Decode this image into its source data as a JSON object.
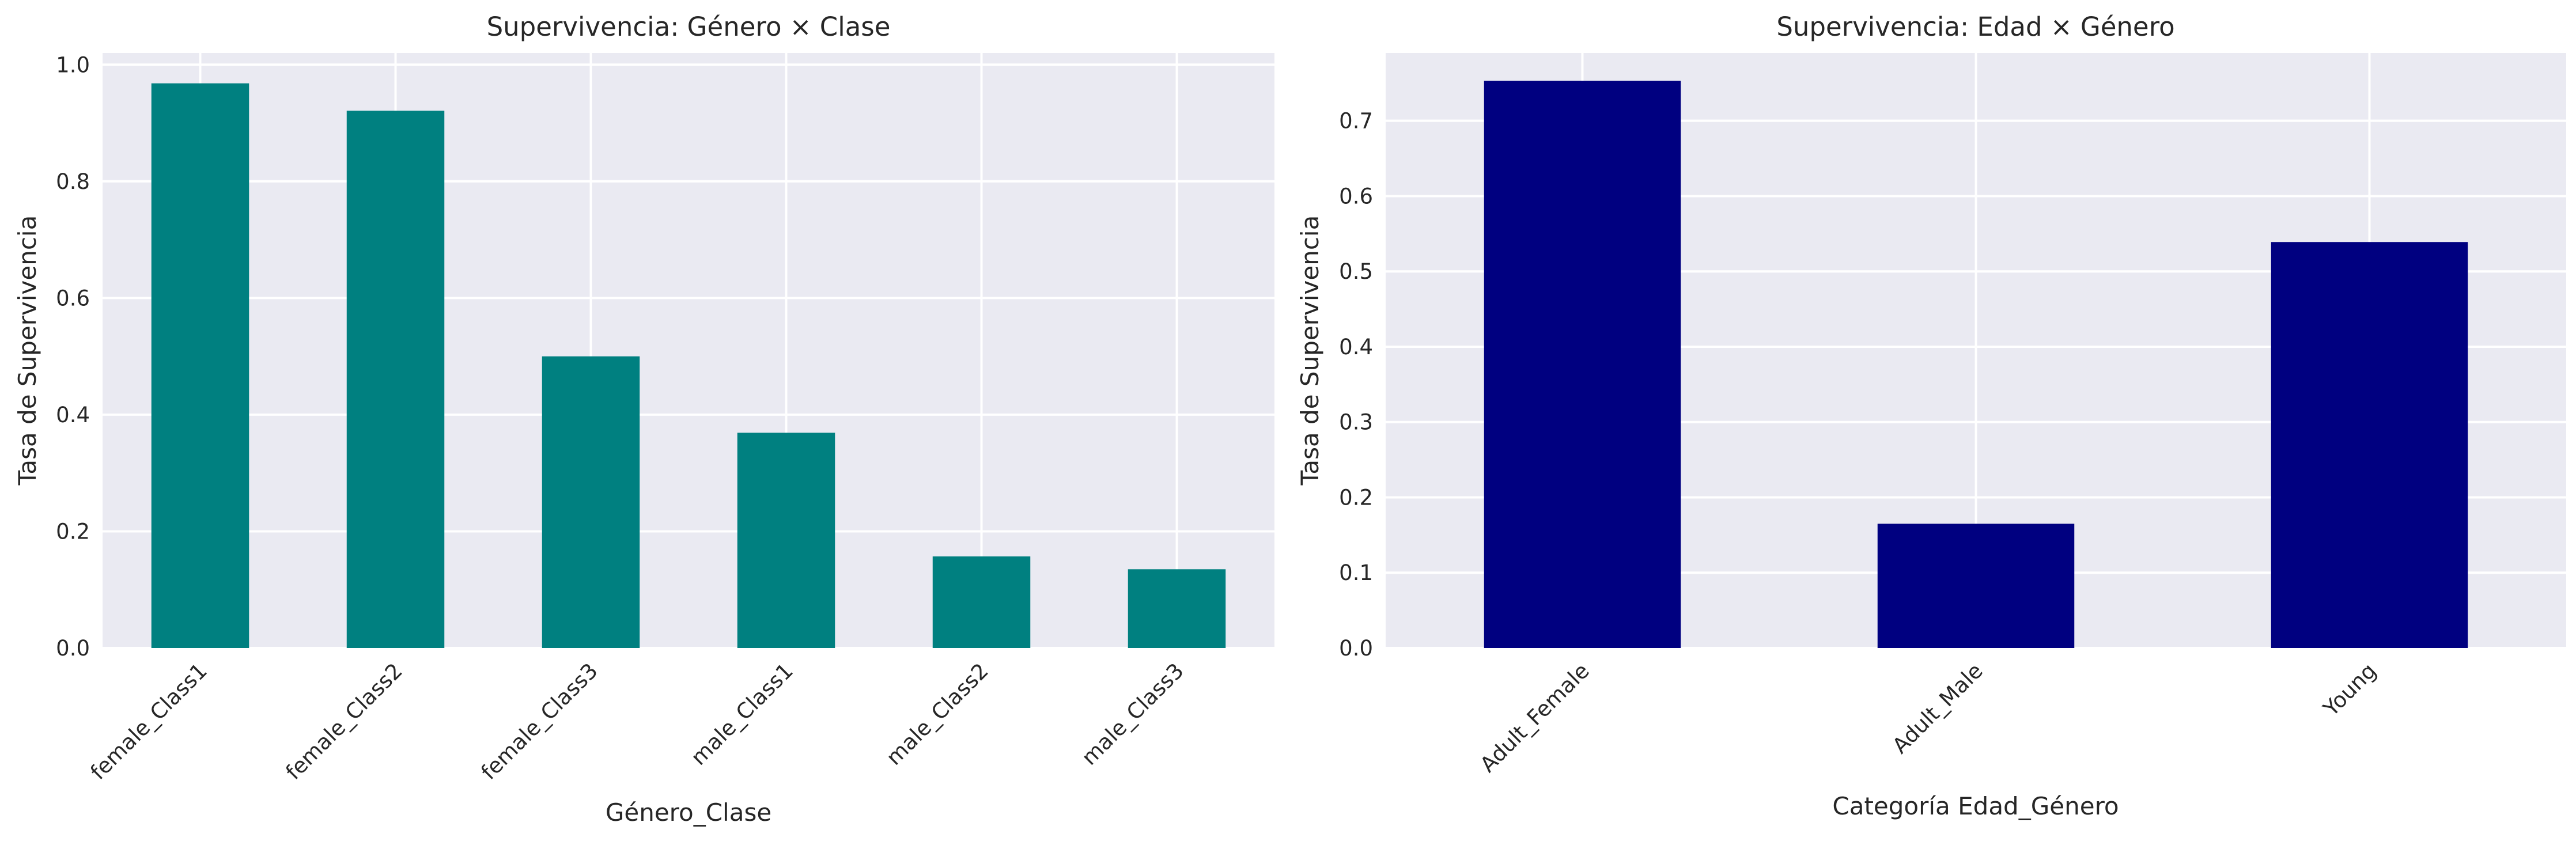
{
  "chart_data": [
    {
      "type": "bar",
      "title": "Supervivencia: Género × Clase",
      "xlabel": "Género_Clase",
      "ylabel": "Tasa de Supervivencia",
      "categories": [
        "female_Class1",
        "female_Class2",
        "female_Class3",
        "male_Class1",
        "male_Class2",
        "male_Class3"
      ],
      "values": [
        0.968,
        0.921,
        0.5,
        0.369,
        0.157,
        0.135
      ],
      "ylim": [
        0,
        1.02
      ],
      "yticks": [
        "0.0",
        "0.2",
        "0.4",
        "0.6",
        "0.8",
        "1.0"
      ],
      "bar_color": "#008080",
      "grid": true,
      "xtick_rotation": 45
    },
    {
      "type": "bar",
      "title": "Supervivencia: Edad × Género",
      "xlabel": "Categoría Edad_Género",
      "ylabel": "Tasa de Supervivencia",
      "categories": [
        "Adult_Female",
        "Adult_Male",
        "Young"
      ],
      "values": [
        0.753,
        0.165,
        0.539
      ],
      "ylim": [
        0,
        0.79
      ],
      "yticks": [
        "0.0",
        "0.1",
        "0.2",
        "0.3",
        "0.4",
        "0.5",
        "0.6",
        "0.7"
      ],
      "bar_color": "#000080",
      "grid": true,
      "xtick_rotation": 45
    }
  ]
}
